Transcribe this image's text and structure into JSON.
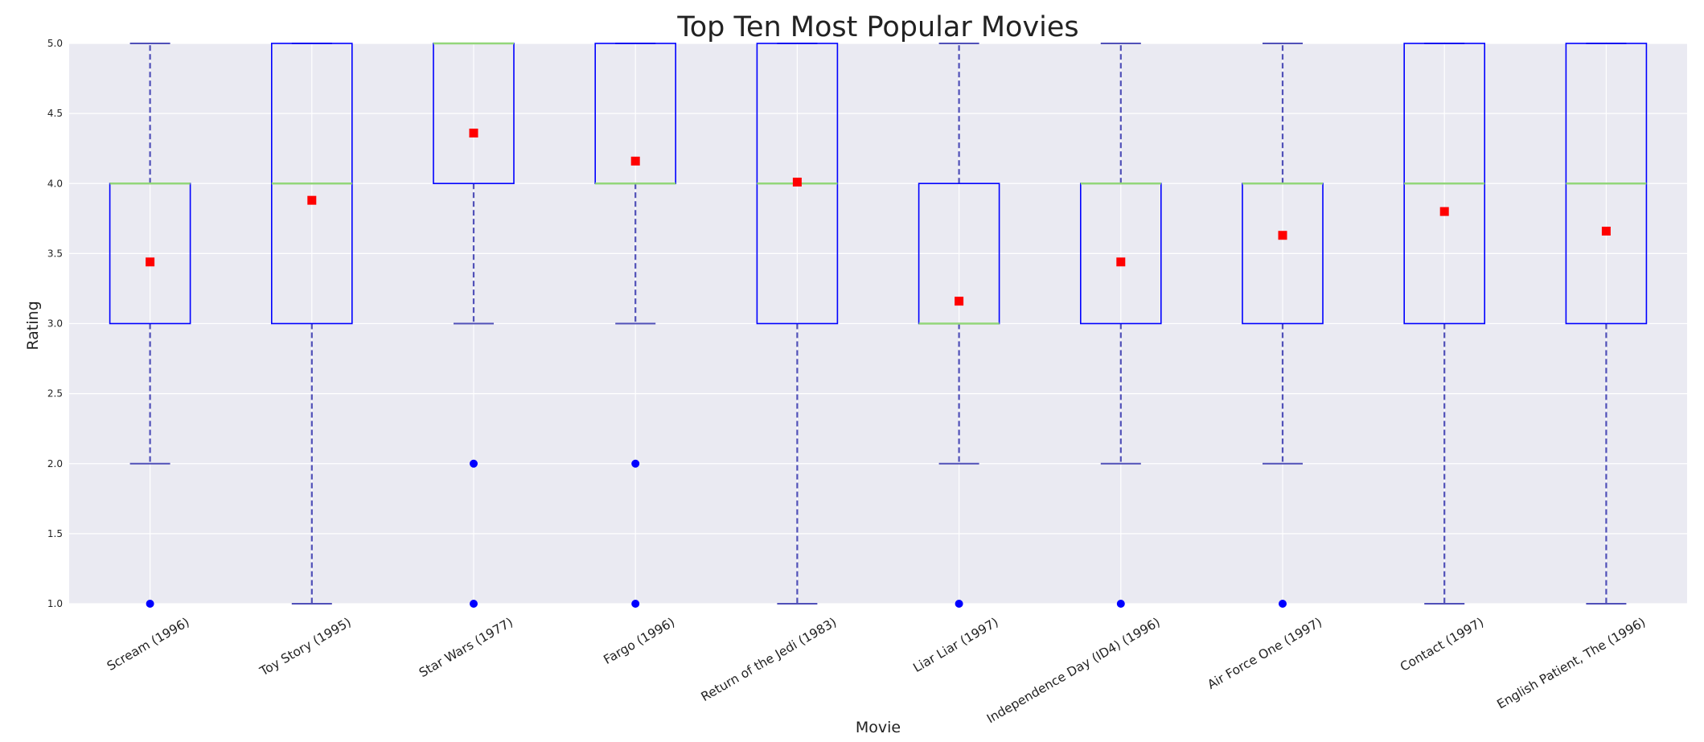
{
  "chart_data": {
    "type": "boxplot",
    "title": "Top Ten Most Popular Movies",
    "xlabel": "Movie",
    "ylabel": "Rating",
    "ylim": [
      1.0,
      5.0
    ],
    "yticks": [
      "1.0",
      "1.5",
      "2.0",
      "2.5",
      "3.0",
      "3.5",
      "4.0",
      "4.5",
      "5.0"
    ],
    "grid": true,
    "categories": [
      "Scream (1996)",
      "Toy Story (1995)",
      "Star Wars (1977)",
      "Fargo (1996)",
      "Return of the Jedi (1983)",
      "Liar Liar (1997)",
      "Independence Day (ID4) (1996)",
      "Air Force One (1997)",
      "Contact (1997)",
      "English Patient, The (1996)"
    ],
    "boxes": [
      {
        "q1": 3,
        "median": 4,
        "q3": 4,
        "whisker_low": 2,
        "whisker_high": 5,
        "mean": 3.44,
        "outliers": [
          1
        ]
      },
      {
        "q1": 3,
        "median": 4,
        "q3": 5,
        "whisker_low": 1,
        "whisker_high": 5,
        "mean": 3.88,
        "outliers": []
      },
      {
        "q1": 4,
        "median": 5,
        "q3": 5,
        "whisker_low": 3,
        "whisker_high": 5,
        "mean": 4.36,
        "outliers": [
          2,
          1
        ]
      },
      {
        "q1": 4,
        "median": 4,
        "q3": 5,
        "whisker_low": 3,
        "whisker_high": 5,
        "mean": 4.16,
        "outliers": [
          2,
          1
        ]
      },
      {
        "q1": 3,
        "median": 4,
        "q3": 5,
        "whisker_low": 1,
        "whisker_high": 5,
        "mean": 4.01,
        "outliers": []
      },
      {
        "q1": 3,
        "median": 3,
        "q3": 4,
        "whisker_low": 2,
        "whisker_high": 5,
        "mean": 3.16,
        "outliers": [
          1
        ]
      },
      {
        "q1": 3,
        "median": 4,
        "q3": 4,
        "whisker_low": 2,
        "whisker_high": 5,
        "mean": 3.44,
        "outliers": [
          1
        ]
      },
      {
        "q1": 3,
        "median": 4,
        "q3": 4,
        "whisker_low": 2,
        "whisker_high": 5,
        "mean": 3.63,
        "outliers": [
          1
        ]
      },
      {
        "q1": 3,
        "median": 4,
        "q3": 5,
        "whisker_low": 1,
        "whisker_high": 5,
        "mean": 3.8,
        "outliers": []
      },
      {
        "q1": 3,
        "median": 4,
        "q3": 5,
        "whisker_low": 1,
        "whisker_high": 5,
        "mean": 3.66,
        "outliers": []
      }
    ],
    "colors": {
      "background": "#eaeaf2",
      "grid": "#ffffff",
      "box": "#0000ff",
      "median": "#93d67a",
      "whisker": "#5050b8",
      "mean_marker": "#ff0000",
      "outlier": "#0000ff"
    }
  }
}
